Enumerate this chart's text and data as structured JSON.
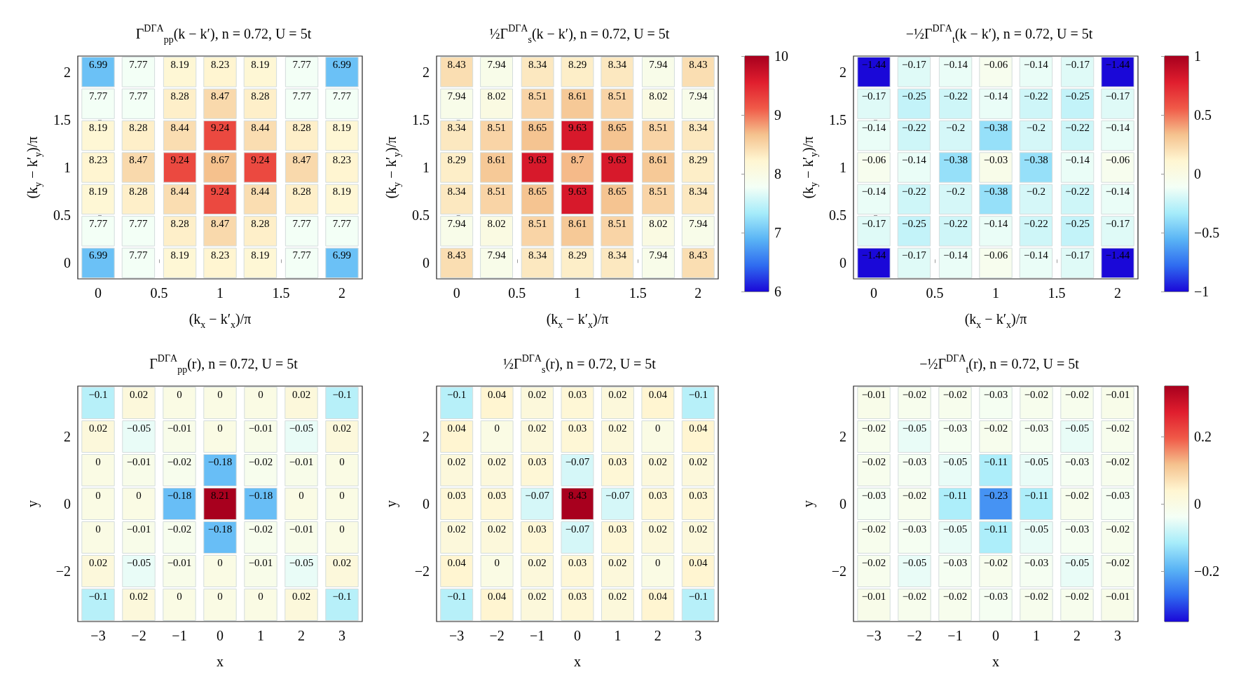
{
  "chart_data": [
    {
      "type": "heatmap",
      "title": "Γ$^{DΓA}$$_{pp}$(k − k′), n = 0.72, U = 5t",
      "xlabel": "(k$_{x}$ − k′$_{x}$)/π",
      "ylabel": "(k$_{y}$ − k′$_{y}$)/π",
      "x": [
        0,
        0.33,
        0.67,
        1,
        1.33,
        1.67,
        2
      ],
      "xlim": [
        -0.1667,
        2.1667
      ],
      "ylim": [
        -0.1667,
        2.1667
      ],
      "xticks": [
        0,
        0.5,
        1,
        1.5,
        2
      ],
      "yticks": [
        0,
        0.5,
        1,
        1.5,
        2
      ],
      "data_labels": true,
      "cells": [
        [
          6.99,
          7.77,
          8.19,
          8.23,
          8.19,
          7.77,
          6.99
        ],
        [
          7.77,
          7.77,
          8.28,
          8.47,
          8.28,
          7.77,
          7.77
        ],
        [
          8.19,
          8.28,
          8.44,
          9.24,
          8.44,
          8.28,
          8.19
        ],
        [
          8.23,
          8.47,
          9.24,
          8.67,
          9.24,
          8.47,
          8.23
        ],
        [
          8.19,
          8.28,
          8.44,
          9.24,
          8.44,
          8.28,
          8.19
        ],
        [
          7.77,
          7.77,
          8.28,
          8.47,
          8.28,
          7.77,
          7.77
        ],
        [
          6.99,
          7.77,
          8.19,
          8.23,
          8.19,
          7.77,
          6.99
        ]
      ]
    },
    {
      "type": "heatmap",
      "title": "½Γ$^{DΓA}$$_{s}$(k − k′), n = 0.72, U = 5t",
      "xlabel": "(k$_{x}$ − k′$_{x}$)/π",
      "ylabel": "(k$_{y}$ − k′$_{y}$)/π",
      "x": [
        0,
        0.33,
        0.67,
        1,
        1.33,
        1.67,
        2
      ],
      "xlim": [
        -0.1667,
        2.1667
      ],
      "ylim": [
        -0.1667,
        2.1667
      ],
      "xticks": [
        0,
        0.5,
        1,
        1.5,
        2
      ],
      "yticks": [
        0,
        0.5,
        1,
        1.5,
        2
      ],
      "clim": [
        6,
        10
      ],
      "cticks": [
        6,
        7,
        8,
        9,
        10
      ],
      "data_labels": true,
      "cells": [
        [
          8.43,
          7.94,
          8.34,
          8.29,
          8.34,
          7.94,
          8.43
        ],
        [
          7.94,
          8.02,
          8.51,
          8.61,
          8.51,
          8.02,
          7.94
        ],
        [
          8.34,
          8.51,
          8.65,
          9.63,
          8.65,
          8.51,
          8.34
        ],
        [
          8.29,
          8.61,
          9.63,
          8.7,
          9.63,
          8.61,
          8.29
        ],
        [
          8.34,
          8.51,
          8.65,
          9.63,
          8.65,
          8.51,
          8.34
        ],
        [
          7.94,
          8.02,
          8.51,
          8.61,
          8.51,
          8.02,
          7.94
        ],
        [
          8.43,
          7.94,
          8.34,
          8.29,
          8.34,
          7.94,
          8.43
        ]
      ]
    },
    {
      "type": "heatmap",
      "title": "−½Γ$^{DΓA}$$_{t}$(k − k′), n = 0.72, U = 5t",
      "xlabel": "(k$_{x}$ − k′$_{x}$)/π",
      "ylabel": "(k$_{y}$ − k′$_{y}$)/π",
      "x": [
        0,
        0.33,
        0.67,
        1,
        1.33,
        1.67,
        2
      ],
      "xlim": [
        -0.1667,
        2.1667
      ],
      "ylim": [
        -0.1667,
        2.1667
      ],
      "xticks": [
        0,
        0.5,
        1,
        1.5,
        2
      ],
      "yticks": [
        0,
        0.5,
        1,
        1.5,
        2
      ],
      "clim": [
        -1,
        1
      ],
      "cticks": [
        -1,
        -0.5,
        0,
        0.5,
        1
      ],
      "data_labels": true,
      "cells": [
        [
          -1.44,
          -0.17,
          -0.14,
          -0.06,
          -0.14,
          -0.17,
          -1.44
        ],
        [
          -0.17,
          -0.25,
          -0.22,
          -0.14,
          -0.22,
          -0.25,
          -0.17
        ],
        [
          -0.14,
          -0.22,
          -0.2,
          -0.38,
          -0.2,
          -0.22,
          -0.14
        ],
        [
          -0.06,
          -0.14,
          -0.38,
          -0.03,
          -0.38,
          -0.14,
          -0.06
        ],
        [
          -0.14,
          -0.22,
          -0.2,
          -0.38,
          -0.2,
          -0.22,
          -0.14
        ],
        [
          -0.17,
          -0.25,
          -0.22,
          -0.14,
          -0.22,
          -0.25,
          -0.17
        ],
        [
          -1.44,
          -0.17,
          -0.14,
          -0.06,
          -0.14,
          -0.17,
          -1.44
        ]
      ]
    },
    {
      "type": "heatmap",
      "title": "Γ$^{DΓA}$$_{pp}$(r), n = 0.72, U = 5t",
      "xlabel": "x",
      "ylabel": "y",
      "x": [
        -3,
        -2,
        -1,
        0,
        1,
        2,
        3
      ],
      "xlim": [
        -3.5,
        3.5
      ],
      "ylim": [
        -3.5,
        3.5
      ],
      "xticks": [
        -3,
        -2,
        -1,
        0,
        1,
        2,
        3
      ],
      "yticks": [
        -2,
        0,
        2
      ],
      "data_labels": true,
      "cells": [
        [
          -0.1,
          0.02,
          0,
          0,
          0,
          0.02,
          -0.1
        ],
        [
          0.02,
          -0.05,
          -0.01,
          0,
          -0.01,
          -0.05,
          0.02
        ],
        [
          0,
          -0.01,
          -0.02,
          -0.18,
          -0.02,
          -0.01,
          0
        ],
        [
          0,
          0,
          -0.18,
          8.21,
          -0.18,
          0,
          0
        ],
        [
          0,
          -0.01,
          -0.02,
          -0.18,
          -0.02,
          -0.01,
          0
        ],
        [
          0.02,
          -0.05,
          -0.01,
          0,
          -0.01,
          -0.05,
          0.02
        ],
        [
          -0.1,
          0.02,
          0,
          0,
          0,
          0.02,
          -0.1
        ]
      ]
    },
    {
      "type": "heatmap",
      "title": "½Γ$^{DΓA}$$_{s}$(r), n = 0.72, U = 5t",
      "xlabel": "x",
      "ylabel": "y",
      "x": [
        -3,
        -2,
        -1,
        0,
        1,
        2,
        3
      ],
      "xlim": [
        -3.5,
        3.5
      ],
      "ylim": [
        -3.5,
        3.5
      ],
      "xticks": [
        -3,
        -2,
        -1,
        0,
        1,
        2,
        3
      ],
      "yticks": [
        -2,
        0,
        2
      ],
      "data_labels": true,
      "cells": [
        [
          -0.1,
          0.04,
          0.02,
          0.03,
          0.02,
          0.04,
          -0.1
        ],
        [
          0.04,
          0,
          0.02,
          0.03,
          0.02,
          0,
          0.04
        ],
        [
          0.02,
          0.02,
          0.03,
          -0.07,
          0.03,
          0.02,
          0.02
        ],
        [
          0.03,
          0.03,
          -0.07,
          8.43,
          -0.07,
          0.03,
          0.03
        ],
        [
          0.02,
          0.02,
          0.03,
          -0.07,
          0.03,
          0.02,
          0.02
        ],
        [
          0.04,
          0,
          0.02,
          0.03,
          0.02,
          0,
          0.04
        ],
        [
          -0.1,
          0.04,
          0.02,
          0.03,
          0.02,
          0.04,
          -0.1
        ]
      ]
    },
    {
      "type": "heatmap",
      "title": "−½Γ$^{DΓA}$$_{t}$(r), n = 0.72, U = 5t",
      "xlabel": "x",
      "ylabel": "y",
      "x": [
        -3,
        -2,
        -1,
        0,
        1,
        2,
        3
      ],
      "xlim": [
        -3.5,
        3.5
      ],
      "ylim": [
        -3.5,
        3.5
      ],
      "xticks": [
        -3,
        -2,
        -1,
        0,
        1,
        2,
        3
      ],
      "yticks": [
        -2,
        0,
        2
      ],
      "clim": [
        -0.35,
        0.35
      ],
      "cticks": [
        -0.2,
        0,
        0.2
      ],
      "data_labels": true,
      "cells": [
        [
          -0.01,
          -0.02,
          -0.02,
          -0.03,
          -0.02,
          -0.02,
          -0.01
        ],
        [
          -0.02,
          -0.05,
          -0.03,
          -0.02,
          -0.03,
          -0.05,
          -0.02
        ],
        [
          -0.02,
          -0.03,
          -0.05,
          -0.11,
          -0.05,
          -0.03,
          -0.02
        ],
        [
          -0.03,
          -0.02,
          -0.11,
          -0.23,
          -0.11,
          -0.02,
          -0.03
        ],
        [
          -0.02,
          -0.03,
          -0.05,
          -0.11,
          -0.05,
          -0.03,
          -0.02
        ],
        [
          -0.02,
          -0.05,
          -0.03,
          -0.02,
          -0.03,
          -0.05,
          -0.02
        ],
        [
          -0.01,
          -0.02,
          -0.02,
          -0.03,
          -0.02,
          -0.02,
          -0.01
        ]
      ]
    }
  ]
}
